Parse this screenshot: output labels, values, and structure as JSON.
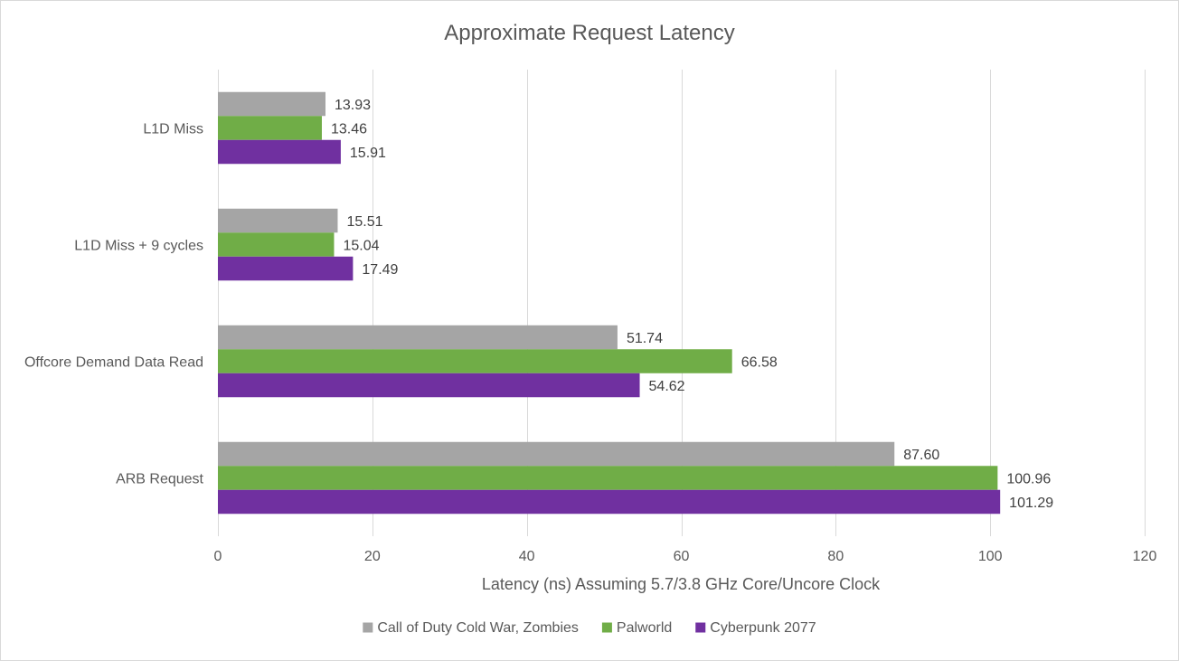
{
  "chart_data": {
    "type": "bar",
    "orientation": "horizontal",
    "title": "Approximate Request Latency",
    "xlabel": "Latency (ns) Assuming 5.7/3.8 GHz Core/Uncore Clock",
    "ylabel": "",
    "xlim": [
      0,
      120
    ],
    "x_ticks": [
      0,
      20,
      40,
      60,
      80,
      100,
      120
    ],
    "grid": true,
    "legend_position": "bottom",
    "categories": [
      "L1D Miss",
      "L1D Miss + 9 cycles",
      "Offcore Demand Data Read",
      "ARB Request"
    ],
    "series": [
      {
        "name": "Call of Duty Cold War, Zombies",
        "color": "#a5a5a5",
        "values": [
          13.93,
          15.51,
          51.74,
          87.6
        ],
        "labels": [
          "13.93",
          "15.51",
          "51.74",
          "87.60"
        ]
      },
      {
        "name": "Palworld",
        "color": "#70ad47",
        "values": [
          13.46,
          15.04,
          66.58,
          100.96
        ],
        "labels": [
          "13.46",
          "15.04",
          "66.58",
          "100.96"
        ]
      },
      {
        "name": "Cyberpunk 2077",
        "color": "#7030a0",
        "values": [
          15.91,
          17.49,
          54.62,
          101.29
        ],
        "labels": [
          "15.91",
          "17.49",
          "54.62",
          "101.29"
        ]
      }
    ]
  }
}
